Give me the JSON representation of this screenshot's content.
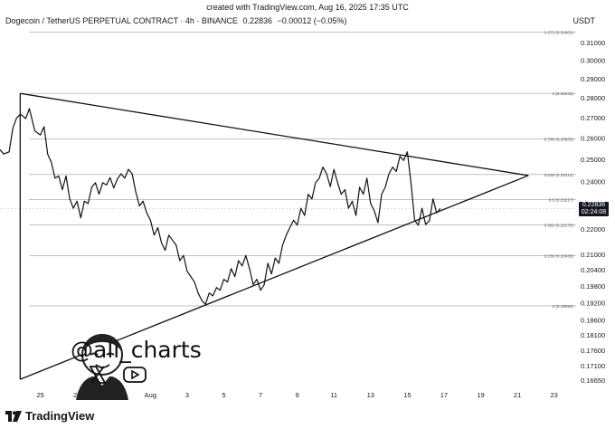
{
  "header": {
    "created_caption": "created with TradingView.com, Aug 16, 2025 17:35 UTC",
    "symbol": "Dogecoin / TetherUS PERPETUAL CONTRACT · 4h · BINANCE",
    "last_price": "0.22836",
    "change": "−0.00012 (−0.05%)",
    "currency": "USDT"
  },
  "price_tag": {
    "price": "0.22836",
    "countdown": "02:24:08"
  },
  "watermark": {
    "handle": "@ali_charts"
  },
  "footer": {
    "brand": "TradingView"
  },
  "chart_data": {
    "type": "line",
    "price_axis_labels": [
      0.31,
      0.3,
      0.29,
      0.28,
      0.27,
      0.26,
      0.25,
      0.24,
      0.23,
      0.22,
      0.21,
      0.204,
      0.198,
      0.192,
      0.186,
      0.181,
      0.176,
      0.171,
      0.1665
    ],
    "price_axis_text": [
      "0.31000",
      "0.30000",
      "0.29000",
      "0.28000",
      "0.27000",
      "0.26000",
      "0.25000",
      "0.24000",
      "0.23000",
      "0.22000",
      "0.21000",
      "0.20400",
      "0.19800",
      "0.19200",
      "0.18600",
      "0.18100",
      "0.17600",
      "0.17100",
      "0.16650"
    ],
    "date_labels": [
      "25",
      "27",
      "29",
      "Aug",
      "3",
      "5",
      "7",
      "9",
      "11",
      "13",
      "15",
      "17",
      "19",
      "21",
      "23"
    ],
    "date_positions": [
      -7,
      -5,
      -3,
      -1,
      1,
      3,
      5,
      7,
      9,
      11,
      13,
      15,
      17,
      19,
      21
    ],
    "fib_levels": [
      {
        "label": "1.272 (0.31601)",
        "price": 0.31601
      },
      {
        "label": "1 (0.28232)",
        "price": 0.28232
      },
      {
        "label": "0.786 (0.25965)",
        "price": 0.25965
      },
      {
        "label": "0.618 (0.24314)",
        "price": 0.24314
      },
      {
        "label": "0.5 (0.23217)",
        "price": 0.23217
      },
      {
        "label": "0.382 (0.22170)",
        "price": 0.2217
      },
      {
        "label": "0.236 (0.20939)",
        "price": 0.20939
      },
      {
        "label": "0 (0.19093)",
        "price": 0.19093
      }
    ],
    "x_days": [
      -9.2,
      -9.0,
      -8.7,
      -8.5,
      -8.3,
      -8.1,
      -8.0,
      -7.8,
      -7.6,
      -7.3,
      -7.0,
      -6.8,
      -6.6,
      -6.4,
      -6.2,
      -6.0,
      -5.8,
      -5.6,
      -5.4,
      -5.2,
      -5.0,
      -4.8,
      -4.6,
      -4.4,
      -4.2,
      -4.0,
      -3.8,
      -3.6,
      -3.4,
      -3.2,
      -3.0,
      -2.8,
      -2.6,
      -2.4,
      -2.2,
      -2.0,
      -1.8,
      -1.6,
      -1.4,
      -1.2,
      -1.0,
      -0.8,
      -0.6,
      -0.4,
      -0.2,
      0.0,
      0.2,
      0.4,
      0.6,
      0.8,
      1.0,
      1.2,
      1.4,
      1.6,
      1.8,
      2.0,
      2.2,
      2.4,
      2.6,
      2.8,
      3.0,
      3.2,
      3.4,
      3.6,
      3.8,
      4.0,
      4.2,
      4.4,
      4.6,
      4.8,
      5.0,
      5.2,
      5.4,
      5.6,
      5.8,
      6.0,
      6.2,
      6.4,
      6.6,
      6.8,
      7.0,
      7.2,
      7.4,
      7.6,
      7.8,
      8.0,
      8.2,
      8.4,
      8.6,
      8.8,
      9.0,
      9.2,
      9.4,
      9.6,
      9.8,
      10.0,
      10.2,
      10.4,
      10.6,
      10.8,
      11.0,
      11.2,
      11.4,
      11.6,
      11.8,
      12.0,
      12.2,
      12.4,
      12.6,
      12.8,
      13.0,
      13.2,
      13.4,
      13.6,
      13.8,
      14.0,
      14.2,
      14.4,
      14.6,
      14.8
    ],
    "prices": [
      0.2545,
      0.2525,
      0.2535,
      0.2648,
      0.2698,
      0.2715,
      0.2712,
      0.2695,
      0.2745,
      0.2635,
      0.2615,
      0.2655,
      0.2525,
      0.2486,
      0.2415,
      0.2425,
      0.2365,
      0.2425,
      0.2325,
      0.2285,
      0.2315,
      0.2245,
      0.2315,
      0.2305,
      0.2375,
      0.2395,
      0.2345,
      0.2395,
      0.2385,
      0.2418,
      0.2372,
      0.2412,
      0.2435,
      0.2415,
      0.2455,
      0.2435,
      0.2355,
      0.2295,
      0.2315,
      0.2265,
      0.2235,
      0.2175,
      0.2205,
      0.2145,
      0.2115,
      0.2175,
      0.2155,
      0.2135,
      0.2075,
      0.2095,
      0.2035,
      0.2015,
      0.1995,
      0.1955,
      0.1928,
      0.1915,
      0.1955,
      0.1945,
      0.1975,
      0.1965,
      0.2005,
      0.1995,
      0.2045,
      0.2015,
      0.2075,
      0.2055,
      0.2095,
      0.2045,
      0.1985,
      0.2005,
      0.1965,
      0.1985,
      0.2065,
      0.2025,
      0.2085,
      0.2065,
      0.2135,
      0.2175,
      0.2205,
      0.2235,
      0.2215,
      0.2285,
      0.2255,
      0.2345,
      0.2325,
      0.2395,
      0.2415,
      0.2465,
      0.2435,
      0.2378,
      0.2455,
      0.2395,
      0.2345,
      0.2365,
      0.2285,
      0.2315,
      0.2255,
      0.2375,
      0.2345,
      0.2415,
      0.2305,
      0.2275,
      0.2225,
      0.2345,
      0.2375,
      0.2435,
      0.2465,
      0.2445,
      0.2515,
      0.2495,
      0.2535,
      0.2395,
      0.2235,
      0.2215,
      0.2285,
      0.2218,
      0.2232,
      0.2325,
      0.2265,
      0.2284
    ],
    "trendlines": [
      {
        "from": [
          -8.1,
          0.2823
        ],
        "to": [
          19.6,
          0.2427
        ]
      },
      {
        "from": [
          -8.1,
          0.1668
        ],
        "to": [
          19.6,
          0.2427
        ]
      },
      {
        "from": [
          -8.1,
          0.2823
        ],
        "to": [
          -8.1,
          0.1668
        ]
      }
    ],
    "ylim": [
      0.1638,
      0.3189
    ],
    "xlim": [
      -9.2,
      22.2
    ]
  }
}
